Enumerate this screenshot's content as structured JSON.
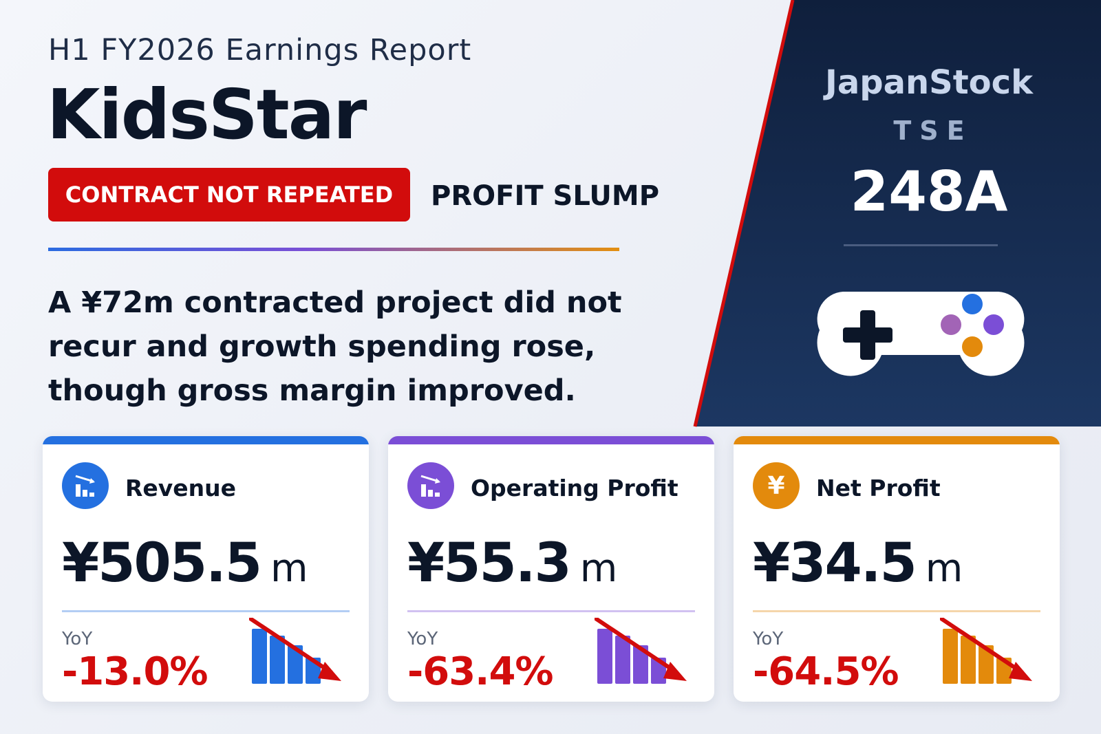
{
  "header": {
    "subtitle": "H1 FY2026 Earnings Report",
    "company": "KidsStar",
    "badge": "CONTRACT NOT REPEATED",
    "tag": "PROFIT SLUMP",
    "summary": "A ¥72m contracted project did not recur and growth spending rose, though gross margin improved."
  },
  "brand": {
    "name": "JapanStock",
    "exchange": "TSE",
    "code": "248A",
    "icon": "gamepad-icon"
  },
  "cards": [
    {
      "title": "Revenue",
      "value": "¥505.5",
      "unit": "m",
      "yoy_label": "YoY",
      "yoy": "-13.0%",
      "color": "#2470e0",
      "icon": "bar-chart-down-icon"
    },
    {
      "title": "Operating Profit",
      "value": "¥55.3",
      "unit": "m",
      "yoy_label": "YoY",
      "yoy": "-63.4%",
      "color": "#7b4ed6",
      "icon": "bar-chart-down-icon"
    },
    {
      "title": "Net Profit",
      "value": "¥34.5",
      "unit": "m",
      "yoy_label": "YoY",
      "yoy": "-64.5%",
      "color": "#e38a0c",
      "icon": "yen-icon",
      "icon_glyph": "¥"
    }
  ],
  "colors": {
    "accent_red": "#d20c0c",
    "panel_dark": "#12264a",
    "text_dark": "#0c1628"
  }
}
